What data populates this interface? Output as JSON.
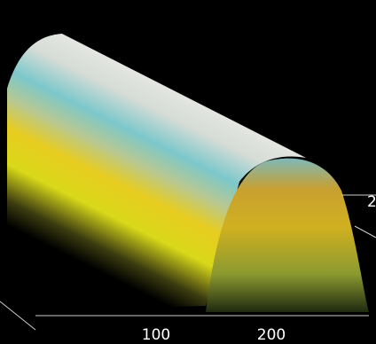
{
  "axis": {
    "x_tick_labels": [
      "100",
      "200"
    ],
    "side_tick_label": "2"
  }
}
